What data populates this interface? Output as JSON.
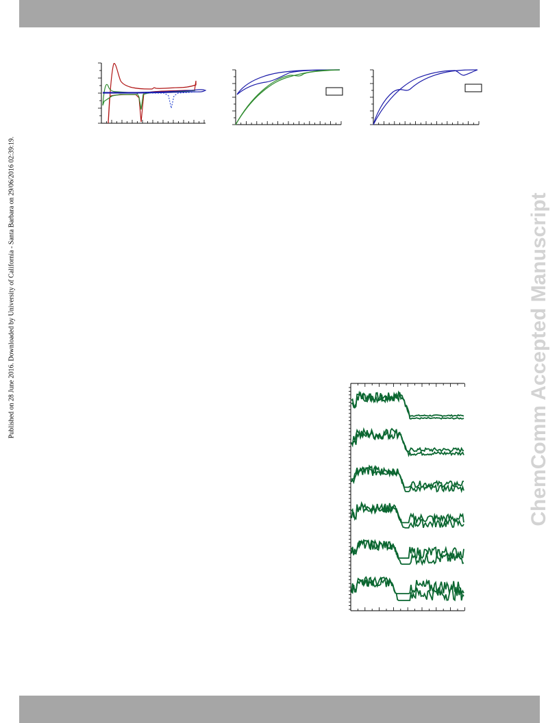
{
  "header": {
    "bar_color": "#a6a6a6"
  },
  "footer": {
    "bar_color": "#a6a6a6"
  },
  "side_note": "Published on 28 June 2016. Downloaded by University of California - Santa Barbara on 29/06/2016 02:39:19.",
  "watermark": "ChemComm Accepted Manuscript",
  "colors": {
    "red": "#b01414",
    "green": "#2e8b2e",
    "blue": "#1a1aa8",
    "blue_dashed": "#2040d0",
    "dark_green": "#0a6630"
  },
  "chart_data": [
    {
      "type": "line",
      "title": "",
      "xlabel": "",
      "ylabel": "",
      "legend": "none",
      "grid": false,
      "series": [
        {
          "color": "red",
          "style": "solid"
        },
        {
          "color": "green",
          "style": "solid"
        },
        {
          "color": "blue",
          "style": "solid"
        },
        {
          "color": "blue",
          "style": "dashed"
        }
      ]
    },
    {
      "type": "line",
      "title": "",
      "xlabel": "",
      "ylabel": "",
      "legend": "box-right",
      "grid": false,
      "series": [
        {
          "color": "blue",
          "style": "solid"
        },
        {
          "color": "green",
          "style": "solid"
        }
      ]
    },
    {
      "type": "line",
      "title": "",
      "xlabel": "",
      "ylabel": "",
      "legend": "box-right",
      "grid": false,
      "series": [
        {
          "color": "blue",
          "style": "solid"
        }
      ]
    },
    {
      "type": "line",
      "title": "",
      "xlabel": "",
      "ylabel": "",
      "legend": "none",
      "grid": false,
      "panels": 6,
      "series": [
        {
          "color": "dark_green",
          "style": "solid"
        }
      ]
    }
  ]
}
